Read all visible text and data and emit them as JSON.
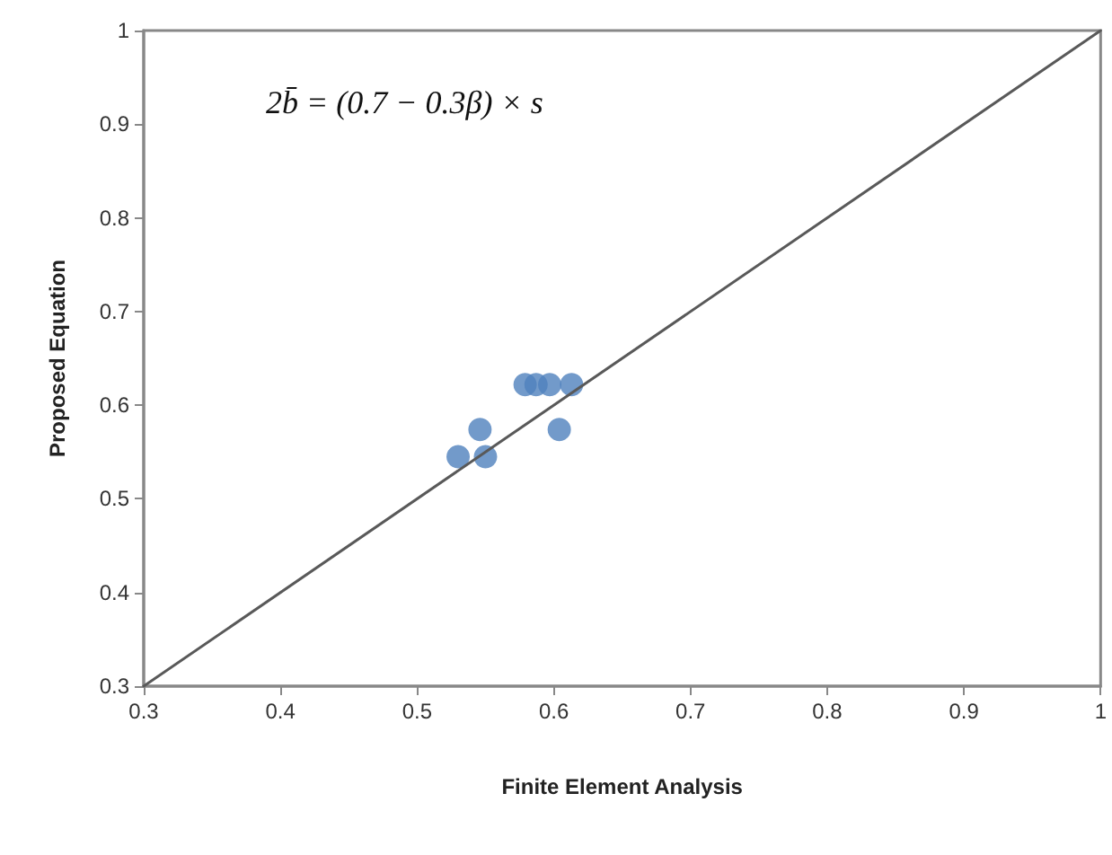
{
  "chart_data": {
    "type": "scatter",
    "xlabel": "Finite Element Analysis",
    "ylabel": "Proposed Equation",
    "annotations": [
      "2b̄ = (0.7 − 0.3β) × s"
    ],
    "series": [
      {
        "color": "#4f81bd",
        "x": [
          0.53,
          0.546,
          0.55,
          0.579,
          0.587,
          0.597,
          0.613,
          0.604
        ],
        "values": [
          0.545,
          0.574,
          0.545,
          0.622,
          0.622,
          0.622,
          0.622,
          0.574
        ]
      },
      {
        "type": "line",
        "marker": "none",
        "color": "#595959",
        "x": [
          0.3,
          1
        ],
        "values": [
          0.3,
          1
        ]
      }
    ],
    "xlim": [
      0.3,
      1
    ],
    "xticks": [
      0.3,
      0.4,
      0.5,
      0.6,
      0.7,
      0.8,
      0.9,
      1
    ],
    "ylim": [
      0.3,
      1
    ],
    "yticks": [
      0.3,
      0.4,
      0.5,
      0.6,
      0.7,
      0.8,
      0.9,
      1
    ],
    "grid": false,
    "marker": "circle"
  }
}
